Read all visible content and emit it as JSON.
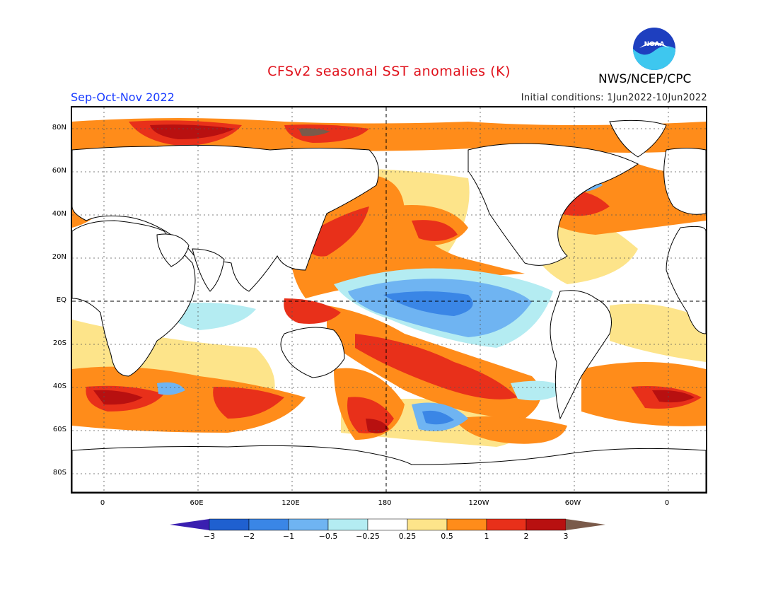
{
  "header": {
    "title": "CFSv2 seasonal SST anomalies (K)",
    "period": "Sep-Oct-Nov 2022",
    "initial_conditions": "Initial conditions: 1Jun2022-10Jun2022",
    "agency": "NWS/NCEP/CPC",
    "logo_text": "NOAA"
  },
  "map": {
    "lat_labels": [
      "80N",
      "60N",
      "40N",
      "20N",
      "EQ",
      "20S",
      "40S",
      "60S",
      "80S"
    ],
    "lon_labels": [
      "0",
      "60E",
      "120E",
      "180",
      "120W",
      "60W",
      "0"
    ]
  },
  "colorbar": {
    "labels": [
      "-3",
      "-2",
      "-1",
      "-0.5",
      "-0.25",
      "0.25",
      "0.5",
      "1",
      "2",
      "3"
    ],
    "colors": [
      "#3a1fb0",
      "#1f60d0",
      "#3a86e6",
      "#6fb4f2",
      "#b4ecf2",
      "#ffffff",
      "#fde48a",
      "#ff8c1a",
      "#e8301a",
      "#b81010",
      "#7a5a4a"
    ]
  },
  "colors": {
    "title": "#e0101a",
    "period": "#1a3cff",
    "land": "#ffffff",
    "coast": "#000000"
  }
}
